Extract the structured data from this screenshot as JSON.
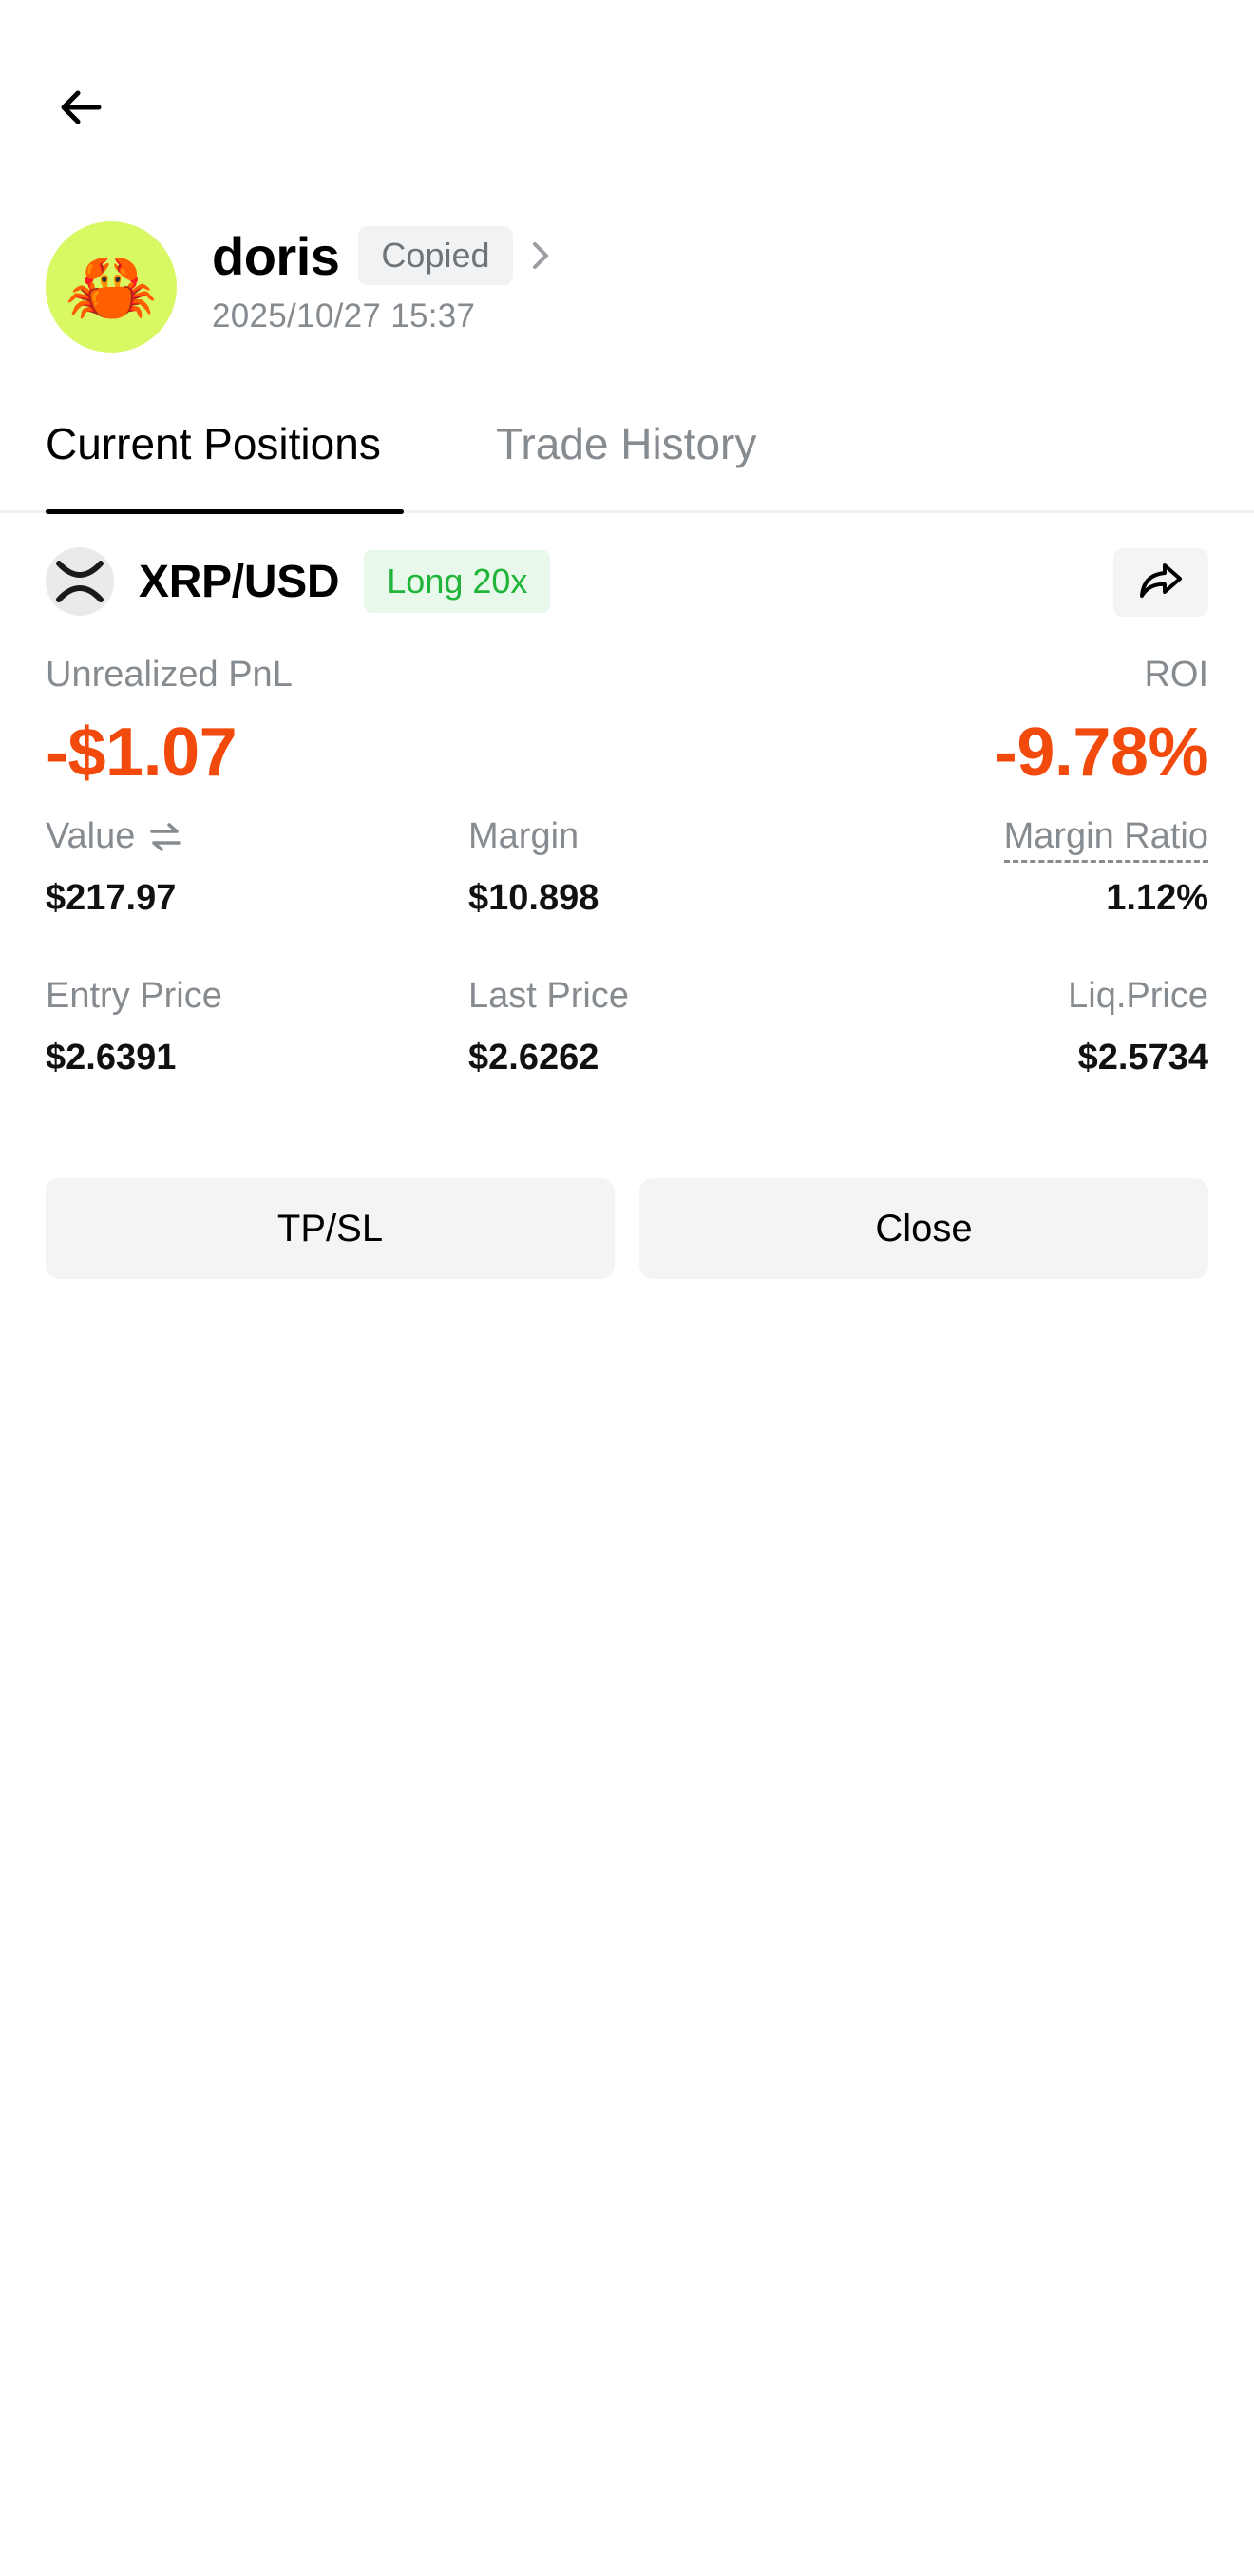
{
  "header": {
    "back_icon": "arrow-left-icon"
  },
  "profile": {
    "avatar_emoji": "🦀",
    "avatar_bg": "#d8f864",
    "name": "doris",
    "badge": "Copied",
    "date": "2025/10/27 15:37"
  },
  "tabs": [
    {
      "label": "Current Positions",
      "active": true
    },
    {
      "label": "Trade History",
      "active": false
    }
  ],
  "position": {
    "pair": "XRP/USD",
    "side_badge": "Long 20x",
    "share_icon": "share-icon",
    "pnl_label": "Unrealized PnL",
    "pnl_value": "-$1.07",
    "roi_label": "ROI",
    "roi_value": "-9.78%",
    "stats": [
      {
        "label": "Value",
        "value": "$217.97"
      },
      {
        "label": "Margin",
        "value": "$10.898"
      },
      {
        "label": "Margin Ratio",
        "value": "1.12%"
      },
      {
        "label": "Entry Price",
        "value": "$2.6391"
      },
      {
        "label": "Last Price",
        "value": "$2.6262"
      },
      {
        "label": "Liq.Price",
        "value": "$2.5734"
      }
    ]
  },
  "actions": {
    "tpsl_label": "TP/SL",
    "close_label": "Close"
  },
  "colors": {
    "negative": "#f24a0c",
    "positive": "#20b43a",
    "muted": "#868b90"
  }
}
